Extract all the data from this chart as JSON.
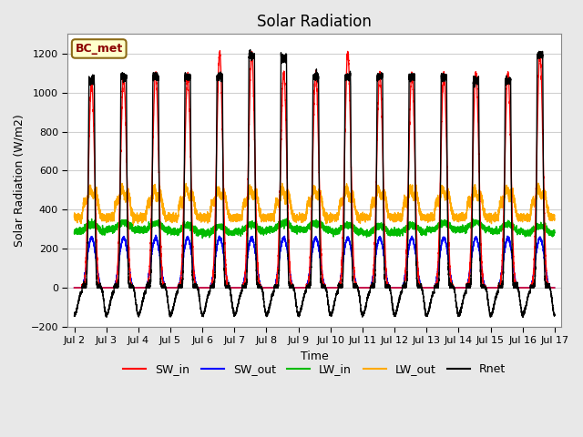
{
  "title": "Solar Radiation",
  "xlabel": "Time",
  "ylabel": "Solar Radiation (W/m2)",
  "ylim": [
    -200,
    1300
  ],
  "yticks": [
    -200,
    0,
    200,
    400,
    600,
    800,
    1000,
    1200
  ],
  "start_day": 2,
  "end_day": 17,
  "num_days": 15,
  "colors": {
    "SW_in": "#ff0000",
    "SW_out": "#0000ff",
    "LW_in": "#00bb00",
    "LW_out": "#ffaa00",
    "Rnet": "#000000"
  },
  "legend_label": "BC_met",
  "background_color": "#e8e8e8",
  "plot_background": "#ffffff",
  "line_width": 1.0,
  "site_label_facecolor": "#ffffcc",
  "site_label_edgecolor": "#8b6914",
  "peak_SW": [
    1050,
    1080,
    1100,
    1080,
    1200,
    1200,
    1100,
    1100,
    1200,
    1100,
    1100,
    1100,
    1100,
    1100,
    1200
  ],
  "peak_Rnet": [
    1060,
    1080,
    1080,
    1080,
    1080,
    1190,
    1180,
    1080,
    1080,
    1080,
    1080,
    1080,
    1060,
    1060,
    1190
  ]
}
